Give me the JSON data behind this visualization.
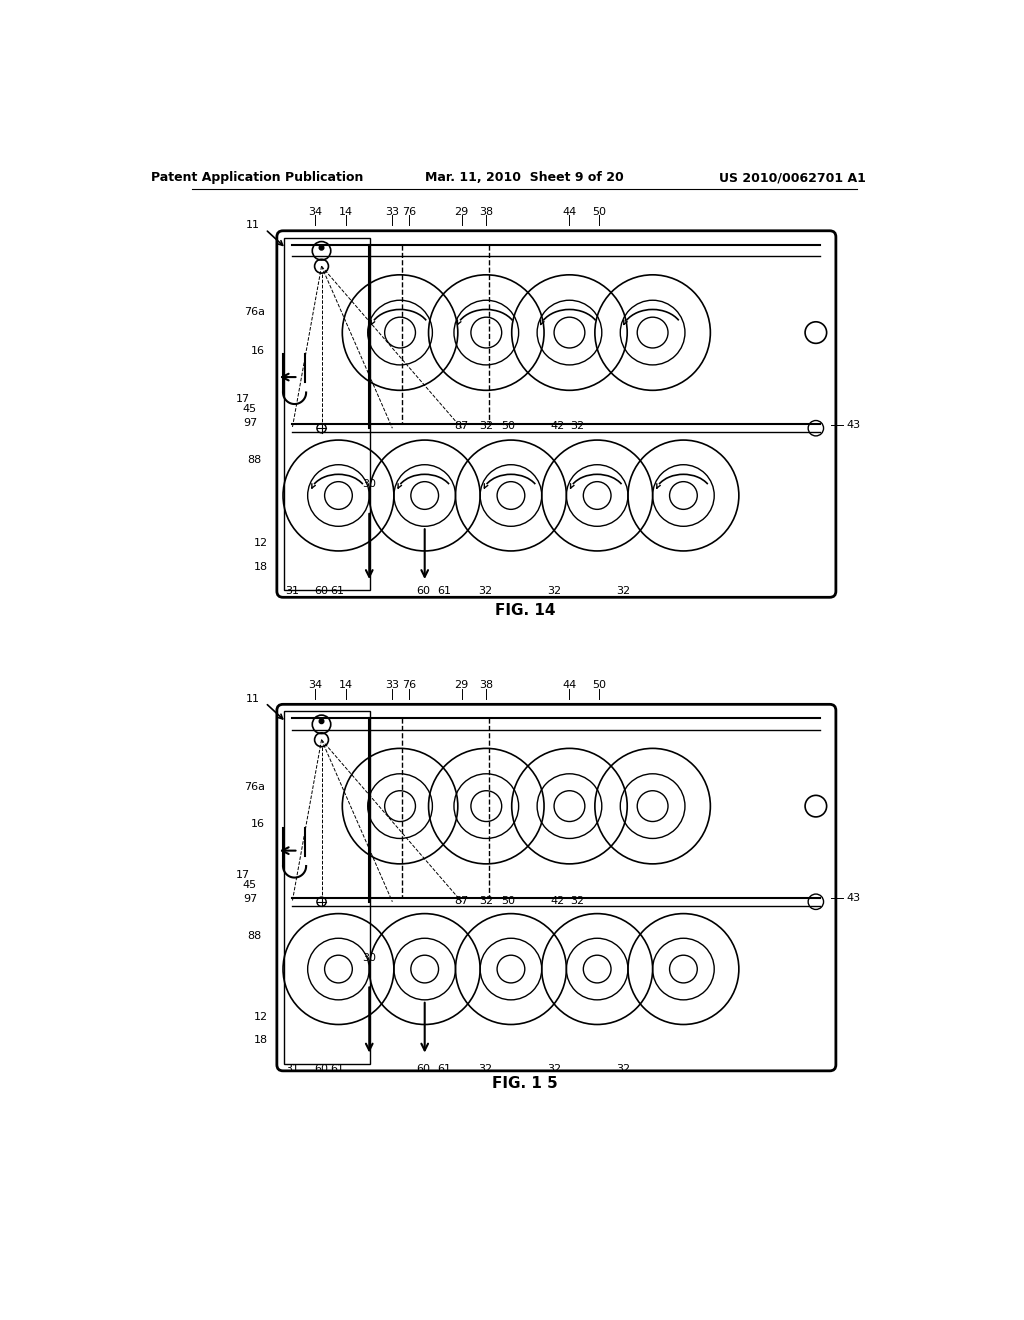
{
  "header_left": "Patent Application Publication",
  "header_mid": "Mar. 11, 2010  Sheet 9 of 20",
  "header_right": "US 2010/0062701 A1",
  "fig14_label": "FIG. 14",
  "fig15_label": "FIG. 1 5",
  "background_color": "#ffffff",
  "line_color": "#000000",
  "top_labels": [
    [
      240,
      "34"
    ],
    [
      280,
      "14"
    ],
    [
      340,
      "33"
    ],
    [
      362,
      "76"
    ],
    [
      430,
      "29"
    ],
    [
      462,
      "38"
    ],
    [
      570,
      "44"
    ],
    [
      608,
      "50"
    ]
  ],
  "left_labels_fig14": [
    [
      175,
      1120,
      "76a"
    ],
    [
      175,
      1070,
      "16"
    ],
    [
      155,
      1008,
      "17"
    ],
    [
      163,
      994,
      "45"
    ],
    [
      165,
      976,
      "97"
    ],
    [
      170,
      928,
      "88"
    ],
    [
      178,
      820,
      "12"
    ],
    [
      178,
      790,
      "18"
    ]
  ],
  "left_labels_fig15": [
    [
      175,
      503,
      "76a"
    ],
    [
      175,
      455,
      "16"
    ],
    [
      155,
      390,
      "17"
    ],
    [
      163,
      376,
      "45"
    ],
    [
      165,
      358,
      "97"
    ],
    [
      170,
      310,
      "88"
    ],
    [
      178,
      205,
      "12"
    ],
    [
      178,
      175,
      "18"
    ]
  ],
  "bot_labels_fig14": [
    [
      210,
      758,
      "31"
    ],
    [
      248,
      758,
      "60"
    ],
    [
      268,
      758,
      "61"
    ],
    [
      380,
      758,
      "60"
    ],
    [
      408,
      758,
      "61"
    ],
    [
      460,
      758,
      "32"
    ],
    [
      550,
      758,
      "32"
    ],
    [
      640,
      758,
      "32"
    ]
  ],
  "bot_labels_fig15": [
    [
      210,
      138,
      "31"
    ],
    [
      248,
      138,
      "60"
    ],
    [
      268,
      138,
      "61"
    ],
    [
      380,
      138,
      "60"
    ],
    [
      408,
      138,
      "61"
    ],
    [
      460,
      138,
      "32"
    ],
    [
      550,
      138,
      "32"
    ],
    [
      640,
      138,
      "32"
    ]
  ],
  "mid_labels_fig14": [
    [
      430,
      972,
      "87"
    ],
    [
      462,
      972,
      "32"
    ],
    [
      490,
      972,
      "50"
    ],
    [
      555,
      972,
      "42"
    ],
    [
      580,
      972,
      "32"
    ]
  ],
  "mid_labels_fig15": [
    [
      430,
      355,
      "87"
    ],
    [
      462,
      355,
      "32"
    ],
    [
      490,
      355,
      "50"
    ],
    [
      555,
      355,
      "42"
    ],
    [
      580,
      355,
      "32"
    ]
  ]
}
